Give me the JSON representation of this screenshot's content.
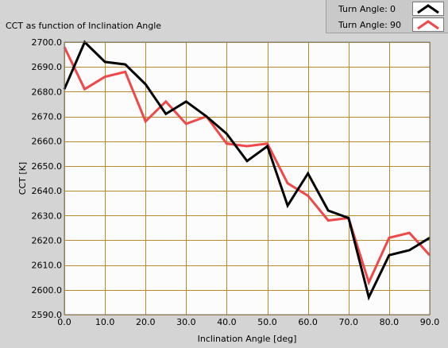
{
  "chart_data": {
    "type": "line",
    "title": "CCT as function of Inclination Angle",
    "xlabel": "Inclination Angle [deg]",
    "ylabel": "CCT [K]",
    "xlim": [
      0,
      90
    ],
    "ylim": [
      2590,
      2700
    ],
    "xticks": [
      "0.0",
      "10.0",
      "20.0",
      "30.0",
      "40.0",
      "50.0",
      "60.0",
      "70.0",
      "80.0",
      "90.0"
    ],
    "yticks": [
      "2590.0",
      "2600.0",
      "2610.0",
      "2620.0",
      "2630.0",
      "2640.0",
      "2650.0",
      "2660.0",
      "2670.0",
      "2680.0",
      "2690.0",
      "2700.0"
    ],
    "grid": true,
    "x": [
      0,
      5,
      10,
      15,
      20,
      25,
      30,
      35,
      40,
      45,
      50,
      55,
      60,
      65,
      70,
      75,
      80,
      85,
      90
    ],
    "series": [
      {
        "name": "Turn Angle:",
        "turn_angle": "0",
        "color": "#000000",
        "values": [
          2681,
          2700,
          2692,
          2691,
          2683,
          2671,
          2676,
          2670,
          2663,
          2652,
          2658,
          2634,
          2647,
          2632,
          2629,
          2597,
          2614,
          2616,
          2621
        ]
      },
      {
        "name": "Turn Angle:",
        "turn_angle": "90",
        "color": "#f04848",
        "values": [
          2698,
          2681,
          2686,
          2688,
          2668,
          2676,
          2667,
          2670,
          2659,
          2658,
          2659,
          2643,
          2638,
          2628,
          2629,
          2603,
          2621,
          2623,
          2614
        ]
      }
    ],
    "legend_position": "top-right",
    "colors": {
      "grid": "#b58a28",
      "plot_background": "#fcfcfc",
      "panel": "#d4d4d4"
    }
  }
}
